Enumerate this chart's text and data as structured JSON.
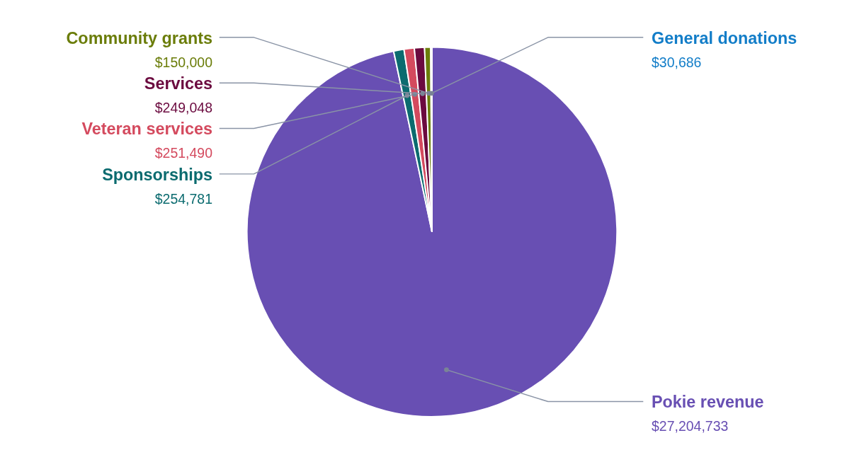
{
  "chart_data": {
    "type": "pie",
    "categories": [
      "Pokie revenue",
      "Sponsorships",
      "Veteran services",
      "Services",
      "Community grants",
      "General donations"
    ],
    "values": [
      27204733,
      254781,
      251490,
      249048,
      150000,
      30686
    ],
    "colors": [
      "#684fb3",
      "#0b6b6f",
      "#d44a5e",
      "#6b0a3f",
      "#6b7d0a",
      "#127dc8"
    ],
    "value_labels": [
      "$27,204,733",
      "$254,781",
      "$251,490",
      "$249,048",
      "$150,000",
      "$30,686"
    ]
  }
}
